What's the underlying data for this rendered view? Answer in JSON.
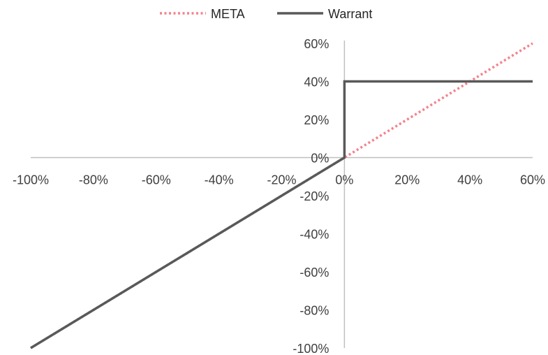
{
  "chart_data": {
    "type": "line",
    "title": "",
    "xlabel": "",
    "ylabel": "",
    "xlim": [
      -1.0,
      0.6
    ],
    "ylim": [
      -1.0,
      0.6
    ],
    "x_ticks": [
      -1.0,
      -0.8,
      -0.6,
      -0.4,
      -0.2,
      0.0,
      0.2,
      0.4,
      0.6
    ],
    "x_tick_labels": [
      "-100%",
      "-80%",
      "-60%",
      "-40%",
      "-20%",
      "0%",
      "20%",
      "40%",
      "60%"
    ],
    "y_ticks": [
      0.6,
      0.4,
      0.2,
      0.0,
      -0.2,
      -0.4,
      -0.6,
      -0.8,
      -1.0
    ],
    "y_tick_labels": [
      "60%",
      "40%",
      "20%",
      "0%",
      "-20%",
      "-40%",
      "-60%",
      "-80%",
      "-100%"
    ],
    "grid": false,
    "legend_position": "top",
    "series": [
      {
        "name": "META",
        "color": "#f4828c",
        "style": "dotted",
        "points": [
          [
            -1.0,
            -1.0
          ],
          [
            0.0,
            0.0
          ],
          [
            0.6,
            0.6
          ]
        ]
      },
      {
        "name": "Warrant",
        "color": "#595959",
        "style": "solid",
        "points": [
          [
            -1.0,
            -1.0
          ],
          [
            0.0,
            0.0
          ],
          [
            0.0,
            0.4
          ],
          [
            0.6,
            0.4
          ]
        ]
      }
    ]
  }
}
